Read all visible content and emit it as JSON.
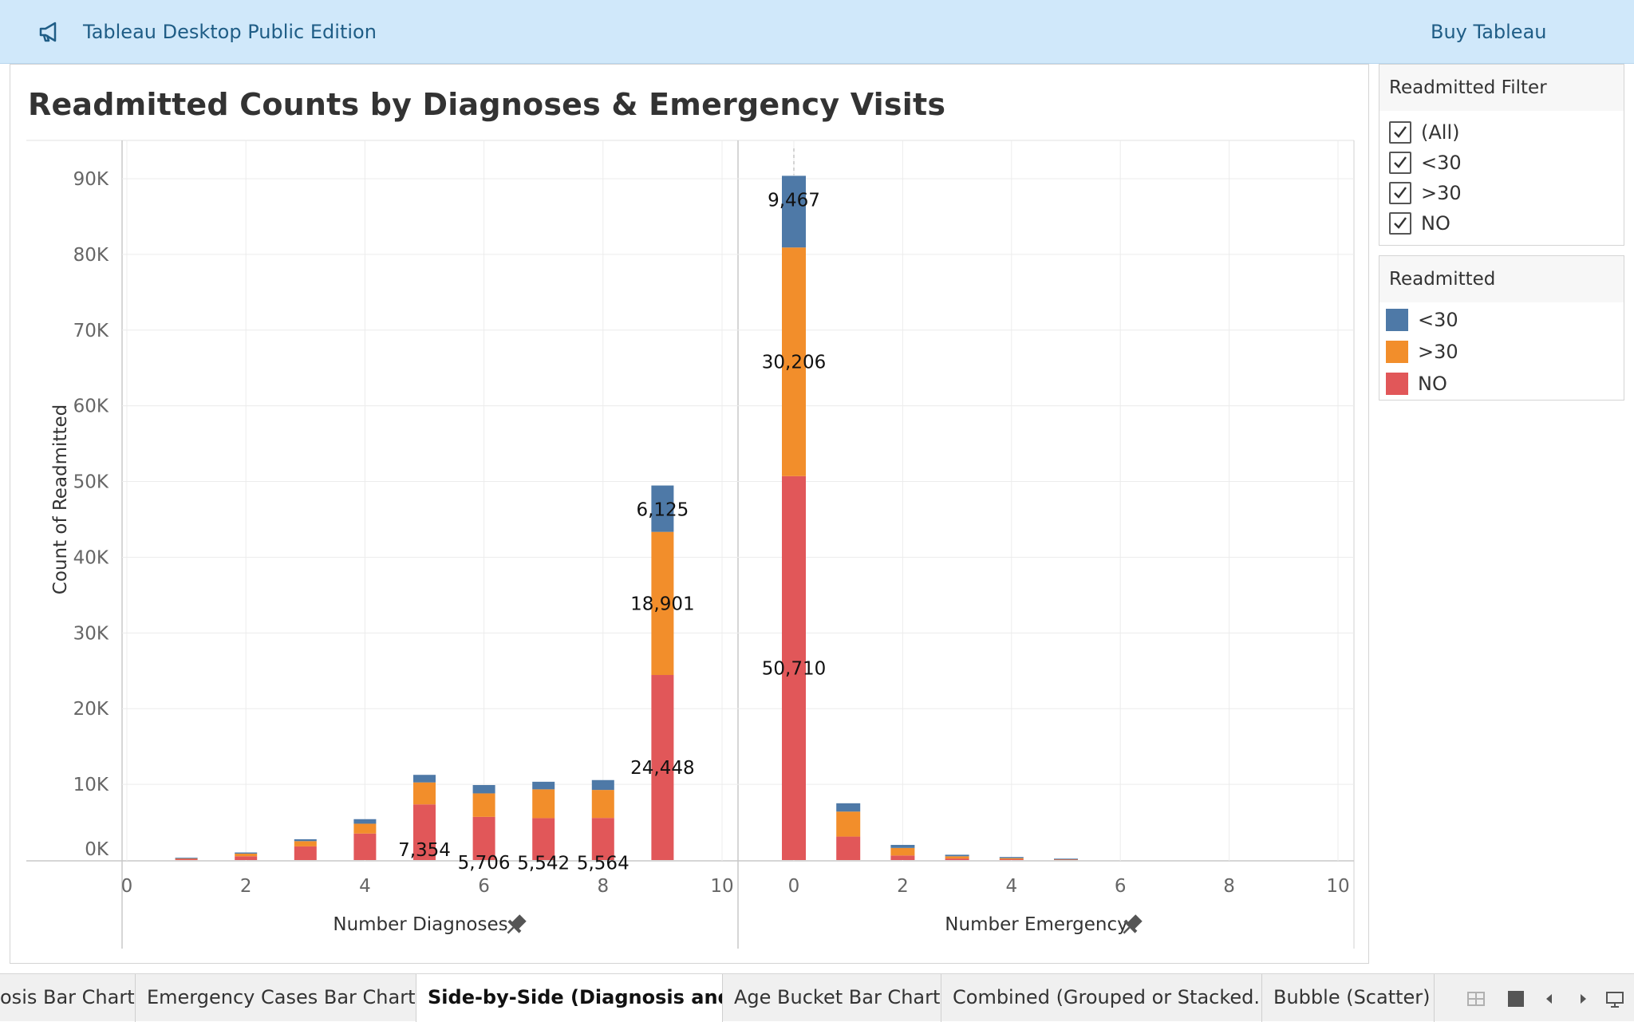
{
  "topbar": {
    "app_title": "Tableau Desktop Public Edition",
    "buy_label": "Buy Tableau",
    "icon": "megaphone-icon"
  },
  "chart_title": "Readmitted Counts by Diagnoses & Emergency Visits",
  "filter": {
    "title": "Readmitted Filter",
    "items": [
      {
        "label": "(All)",
        "checked": true
      },
      {
        "label": "<30",
        "checked": true
      },
      {
        "label": ">30",
        "checked": true
      },
      {
        "label": "NO",
        "checked": true
      }
    ]
  },
  "legend": {
    "title": "Readmitted",
    "items": [
      {
        "label": "<30",
        "color": "#4e79a7"
      },
      {
        "label": ">30",
        "color": "#f28e2b"
      },
      {
        "label": "NO",
        "color": "#e15759"
      }
    ]
  },
  "chart_data": {
    "type": "bar",
    "stacked": true,
    "ylabel": "Count of Readmitted",
    "yticks": [
      "0K",
      "10K",
      "20K",
      "30K",
      "40K",
      "50K",
      "60K",
      "70K",
      "80K",
      "90K"
    ],
    "ylim": [
      0,
      95000
    ],
    "series_colors": {
      "<30": "#4e79a7",
      ">30": "#f28e2b",
      "NO": "#e15759"
    },
    "panes": [
      {
        "xlabel": "Number Diagnoses",
        "xticks": [
          "0",
          "2",
          "4",
          "6",
          "8",
          "10"
        ],
        "xlim": [
          0,
          10
        ],
        "bars": [
          {
            "x": 1,
            "values": {
              "NO": 150,
              "<30": 60,
              ">30": 50
            }
          },
          {
            "x": 2,
            "values": {
              "NO": 500,
              ">30": 350,
              "<30": 150
            }
          },
          {
            "x": 3,
            "values": {
              "NO": 1800,
              ">30": 700,
              "<30": 250
            }
          },
          {
            "x": 4,
            "values": {
              "NO": 3500,
              ">30": 1300,
              "<30": 600
            }
          },
          {
            "x": 5,
            "values": {
              "NO": 7354,
              ">30": 2900,
              "<30": 1000
            }
          },
          {
            "x": 6,
            "values": {
              "NO": 5706,
              ">30": 3100,
              "<30": 1100
            }
          },
          {
            "x": 7,
            "values": {
              "NO": 5542,
              ">30": 3800,
              "<30": 1000
            }
          },
          {
            "x": 8,
            "values": {
              "NO": 5564,
              ">30": 3700,
              "<30": 1300
            }
          },
          {
            "x": 9,
            "values": {
              "NO": 24448,
              ">30": 18901,
              "<30": 6125
            }
          }
        ],
        "labels": [
          {
            "x": 5,
            "series": "NO",
            "text": "7,354"
          },
          {
            "x": 6,
            "series": "NO",
            "text": "5,706"
          },
          {
            "x": 7,
            "series": "NO",
            "text": "5,542"
          },
          {
            "x": 8,
            "series": "NO",
            "text": "5,564"
          },
          {
            "x": 9,
            "series": "NO",
            "text": "24,448"
          },
          {
            "x": 9,
            "series": ">30",
            "text": "18,901"
          },
          {
            "x": 9,
            "series": "<30",
            "text": "6,125"
          }
        ]
      },
      {
        "xlabel": "Number Emergency",
        "xticks": [
          "0",
          "2",
          "4",
          "6",
          "8",
          "10"
        ],
        "xlim": [
          -1,
          10
        ],
        "bars": [
          {
            "x": 0,
            "values": {
              "NO": 50710,
              ">30": 30206,
              "<30": 9467
            }
          },
          {
            "x": 1,
            "values": {
              "NO": 3100,
              ">30": 3300,
              "<30": 1100
            }
          },
          {
            "x": 2,
            "values": {
              "NO": 600,
              ">30": 1000,
              "<30": 400
            }
          },
          {
            "x": 3,
            "values": {
              "NO": 200,
              ">30": 300,
              "<30": 200
            }
          },
          {
            "x": 4,
            "values": {
              "NO": 100,
              ">30": 150,
              "<30": 150
            }
          },
          {
            "x": 5,
            "values": {
              "NO": 40,
              ">30": 40,
              "<30": 40
            }
          }
        ],
        "labels": [
          {
            "x": 0,
            "series": "NO",
            "text": "50,710"
          },
          {
            "x": 0,
            "series": ">30",
            "text": "30,206"
          },
          {
            "x": 0,
            "series": "<30",
            "text": "9,467"
          }
        ]
      }
    ]
  },
  "tabs": [
    {
      "label": "osis Bar Chart",
      "active": false
    },
    {
      "label": "Emergency Cases Bar Chart",
      "active": false
    },
    {
      "label": "Side-by-Side (Diagnosis and E...",
      "active": true
    },
    {
      "label": "Age Bucket Bar Chart",
      "active": false
    },
    {
      "label": "Combined (Grouped or Stacked...",
      "active": false
    },
    {
      "label": "Bubble (Scatter) C",
      "active": false
    }
  ]
}
